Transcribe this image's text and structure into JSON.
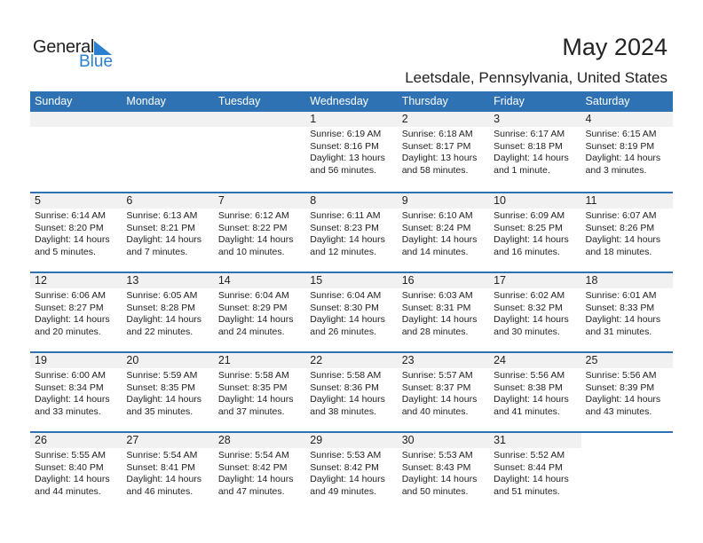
{
  "logo": {
    "general": "General",
    "blue": "Blue"
  },
  "header": {
    "title": "May 2024",
    "location": "Leetsdale, Pennsylvania, United States"
  },
  "colors": {
    "accent": "#2f72b4",
    "band": "#f1f1f1",
    "logo_blue": "#2a7fd0"
  },
  "weekdays": [
    "Sunday",
    "Monday",
    "Tuesday",
    "Wednesday",
    "Thursday",
    "Friday",
    "Saturday"
  ],
  "first_weekday_offset": 3,
  "days": [
    {
      "day": "1",
      "sunrise": "Sunrise: 6:19 AM",
      "sunset": "Sunset: 8:16 PM",
      "daylight1": "Daylight: 13 hours",
      "daylight2": "and 56 minutes."
    },
    {
      "day": "2",
      "sunrise": "Sunrise: 6:18 AM",
      "sunset": "Sunset: 8:17 PM",
      "daylight1": "Daylight: 13 hours",
      "daylight2": "and 58 minutes."
    },
    {
      "day": "3",
      "sunrise": "Sunrise: 6:17 AM",
      "sunset": "Sunset: 8:18 PM",
      "daylight1": "Daylight: 14 hours",
      "daylight2": "and 1 minute."
    },
    {
      "day": "4",
      "sunrise": "Sunrise: 6:15 AM",
      "sunset": "Sunset: 8:19 PM",
      "daylight1": "Daylight: 14 hours",
      "daylight2": "and 3 minutes."
    },
    {
      "day": "5",
      "sunrise": "Sunrise: 6:14 AM",
      "sunset": "Sunset: 8:20 PM",
      "daylight1": "Daylight: 14 hours",
      "daylight2": "and 5 minutes."
    },
    {
      "day": "6",
      "sunrise": "Sunrise: 6:13 AM",
      "sunset": "Sunset: 8:21 PM",
      "daylight1": "Daylight: 14 hours",
      "daylight2": "and 7 minutes."
    },
    {
      "day": "7",
      "sunrise": "Sunrise: 6:12 AM",
      "sunset": "Sunset: 8:22 PM",
      "daylight1": "Daylight: 14 hours",
      "daylight2": "and 10 minutes."
    },
    {
      "day": "8",
      "sunrise": "Sunrise: 6:11 AM",
      "sunset": "Sunset: 8:23 PM",
      "daylight1": "Daylight: 14 hours",
      "daylight2": "and 12 minutes."
    },
    {
      "day": "9",
      "sunrise": "Sunrise: 6:10 AM",
      "sunset": "Sunset: 8:24 PM",
      "daylight1": "Daylight: 14 hours",
      "daylight2": "and 14 minutes."
    },
    {
      "day": "10",
      "sunrise": "Sunrise: 6:09 AM",
      "sunset": "Sunset: 8:25 PM",
      "daylight1": "Daylight: 14 hours",
      "daylight2": "and 16 minutes."
    },
    {
      "day": "11",
      "sunrise": "Sunrise: 6:07 AM",
      "sunset": "Sunset: 8:26 PM",
      "daylight1": "Daylight: 14 hours",
      "daylight2": "and 18 minutes."
    },
    {
      "day": "12",
      "sunrise": "Sunrise: 6:06 AM",
      "sunset": "Sunset: 8:27 PM",
      "daylight1": "Daylight: 14 hours",
      "daylight2": "and 20 minutes."
    },
    {
      "day": "13",
      "sunrise": "Sunrise: 6:05 AM",
      "sunset": "Sunset: 8:28 PM",
      "daylight1": "Daylight: 14 hours",
      "daylight2": "and 22 minutes."
    },
    {
      "day": "14",
      "sunrise": "Sunrise: 6:04 AM",
      "sunset": "Sunset: 8:29 PM",
      "daylight1": "Daylight: 14 hours",
      "daylight2": "and 24 minutes."
    },
    {
      "day": "15",
      "sunrise": "Sunrise: 6:04 AM",
      "sunset": "Sunset: 8:30 PM",
      "daylight1": "Daylight: 14 hours",
      "daylight2": "and 26 minutes."
    },
    {
      "day": "16",
      "sunrise": "Sunrise: 6:03 AM",
      "sunset": "Sunset: 8:31 PM",
      "daylight1": "Daylight: 14 hours",
      "daylight2": "and 28 minutes."
    },
    {
      "day": "17",
      "sunrise": "Sunrise: 6:02 AM",
      "sunset": "Sunset: 8:32 PM",
      "daylight1": "Daylight: 14 hours",
      "daylight2": "and 30 minutes."
    },
    {
      "day": "18",
      "sunrise": "Sunrise: 6:01 AM",
      "sunset": "Sunset: 8:33 PM",
      "daylight1": "Daylight: 14 hours",
      "daylight2": "and 31 minutes."
    },
    {
      "day": "19",
      "sunrise": "Sunrise: 6:00 AM",
      "sunset": "Sunset: 8:34 PM",
      "daylight1": "Daylight: 14 hours",
      "daylight2": "and 33 minutes."
    },
    {
      "day": "20",
      "sunrise": "Sunrise: 5:59 AM",
      "sunset": "Sunset: 8:35 PM",
      "daylight1": "Daylight: 14 hours",
      "daylight2": "and 35 minutes."
    },
    {
      "day": "21",
      "sunrise": "Sunrise: 5:58 AM",
      "sunset": "Sunset: 8:35 PM",
      "daylight1": "Daylight: 14 hours",
      "daylight2": "and 37 minutes."
    },
    {
      "day": "22",
      "sunrise": "Sunrise: 5:58 AM",
      "sunset": "Sunset: 8:36 PM",
      "daylight1": "Daylight: 14 hours",
      "daylight2": "and 38 minutes."
    },
    {
      "day": "23",
      "sunrise": "Sunrise: 5:57 AM",
      "sunset": "Sunset: 8:37 PM",
      "daylight1": "Daylight: 14 hours",
      "daylight2": "and 40 minutes."
    },
    {
      "day": "24",
      "sunrise": "Sunrise: 5:56 AM",
      "sunset": "Sunset: 8:38 PM",
      "daylight1": "Daylight: 14 hours",
      "daylight2": "and 41 minutes."
    },
    {
      "day": "25",
      "sunrise": "Sunrise: 5:56 AM",
      "sunset": "Sunset: 8:39 PM",
      "daylight1": "Daylight: 14 hours",
      "daylight2": "and 43 minutes."
    },
    {
      "day": "26",
      "sunrise": "Sunrise: 5:55 AM",
      "sunset": "Sunset: 8:40 PM",
      "daylight1": "Daylight: 14 hours",
      "daylight2": "and 44 minutes."
    },
    {
      "day": "27",
      "sunrise": "Sunrise: 5:54 AM",
      "sunset": "Sunset: 8:41 PM",
      "daylight1": "Daylight: 14 hours",
      "daylight2": "and 46 minutes."
    },
    {
      "day": "28",
      "sunrise": "Sunrise: 5:54 AM",
      "sunset": "Sunset: 8:42 PM",
      "daylight1": "Daylight: 14 hours",
      "daylight2": "and 47 minutes."
    },
    {
      "day": "29",
      "sunrise": "Sunrise: 5:53 AM",
      "sunset": "Sunset: 8:42 PM",
      "daylight1": "Daylight: 14 hours",
      "daylight2": "and 49 minutes."
    },
    {
      "day": "30",
      "sunrise": "Sunrise: 5:53 AM",
      "sunset": "Sunset: 8:43 PM",
      "daylight1": "Daylight: 14 hours",
      "daylight2": "and 50 minutes."
    },
    {
      "day": "31",
      "sunrise": "Sunrise: 5:52 AM",
      "sunset": "Sunset: 8:44 PM",
      "daylight1": "Daylight: 14 hours",
      "daylight2": "and 51 minutes."
    }
  ]
}
